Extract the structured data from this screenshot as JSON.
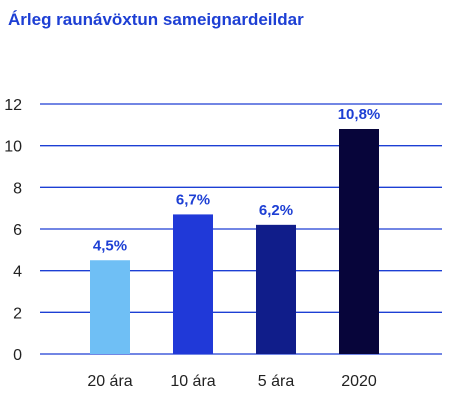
{
  "chart_data": {
    "type": "bar",
    "title": "Árleg raunávöxtun sameignardeildar",
    "xlabel": "",
    "ylabel": "",
    "categories": [
      "20 ára",
      "10 ára",
      "5 ára",
      "2020"
    ],
    "values": [
      4.5,
      6.7,
      6.2,
      10.8
    ],
    "value_labels": [
      "4,5%",
      "6,7%",
      "6,2%",
      "10,8%"
    ],
    "bar_colors": [
      "#6fbff5",
      "#2039d8",
      "#101d8a",
      "#07053a"
    ],
    "yticks": [
      "0",
      "2",
      "4",
      "6",
      "8",
      "10",
      "12"
    ],
    "ylim": [
      0,
      12
    ],
    "grid": true,
    "gridline_color": "#1d3fd4",
    "label_color": "#1d3fd4"
  }
}
